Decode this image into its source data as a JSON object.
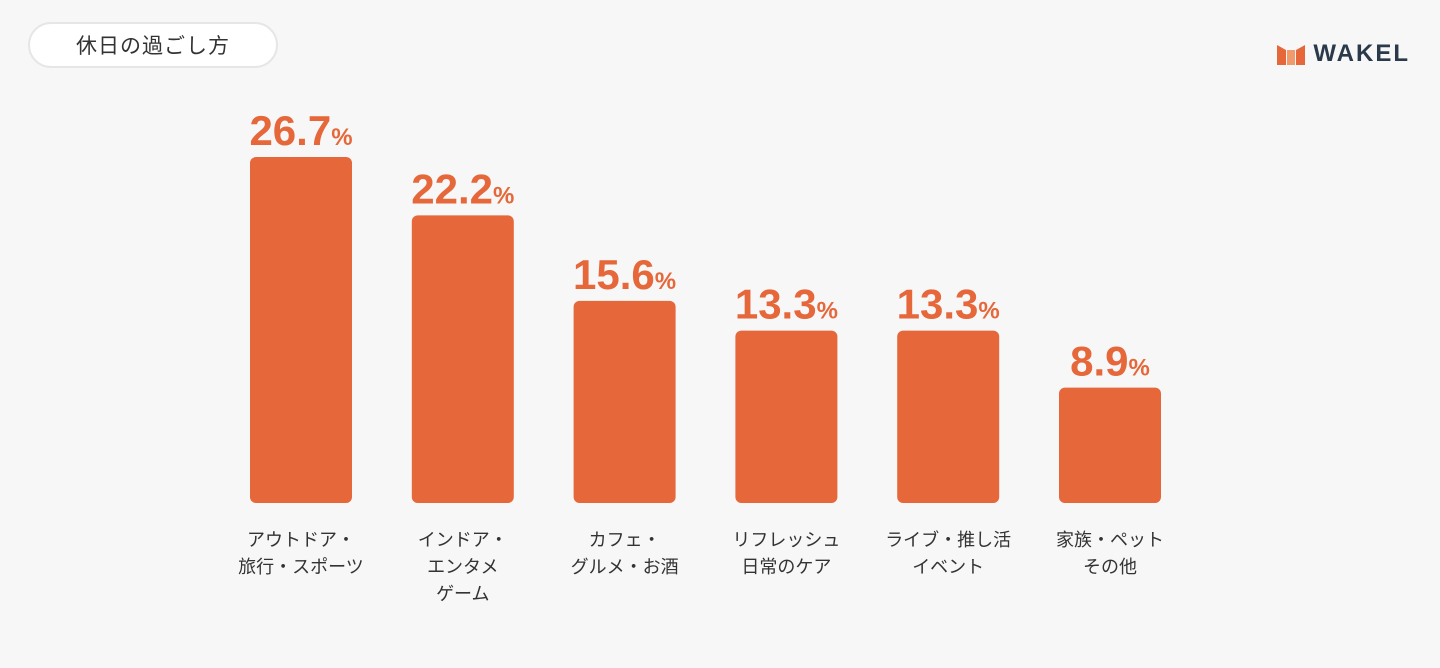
{
  "header": {
    "title": "休日の過ごし方"
  },
  "brand": {
    "name": "WAKEL",
    "colors": {
      "logo_orange": "#e5673a",
      "logo_text": "#2b3a4a"
    }
  },
  "colors": {
    "bar": "#e5673a",
    "background": "#f7f7f7"
  },
  "chart_data": {
    "type": "bar",
    "categories": [
      [
        "アウトドア・",
        "旅行・スポーツ"
      ],
      [
        "インドア・",
        "エンタメ",
        "ゲーム"
      ],
      [
        "カフェ・",
        "グルメ・お酒"
      ],
      [
        "リフレッシュ",
        "日常のケア"
      ],
      [
        "ライブ・推し活",
        "イベント"
      ],
      [
        "家族・ペット",
        "その他"
      ]
    ],
    "values": [
      26.7,
      22.2,
      15.6,
      13.3,
      13.3,
      8.9
    ],
    "value_labels": [
      "26.7",
      "22.2",
      "15.6",
      "13.3",
      "13.3",
      "8.9"
    ],
    "unit": "%",
    "ylim": [
      0,
      26.7
    ],
    "grid": false
  }
}
